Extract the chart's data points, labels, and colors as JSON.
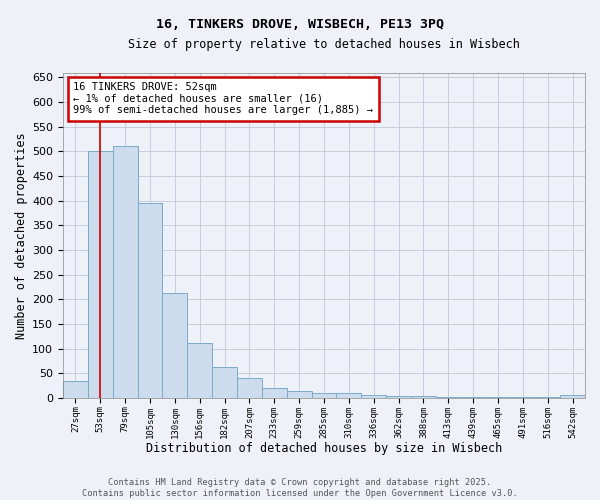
{
  "title_line1": "16, TINKERS DROVE, WISBECH, PE13 3PQ",
  "title_line2": "Size of property relative to detached houses in Wisbech",
  "xlabel": "Distribution of detached houses by size in Wisbech",
  "ylabel": "Number of detached properties",
  "categories": [
    "27sqm",
    "53sqm",
    "79sqm",
    "105sqm",
    "130sqm",
    "156sqm",
    "182sqm",
    "207sqm",
    "233sqm",
    "259sqm",
    "285sqm",
    "310sqm",
    "336sqm",
    "362sqm",
    "388sqm",
    "413sqm",
    "439sqm",
    "465sqm",
    "491sqm",
    "516sqm",
    "542sqm"
  ],
  "values": [
    35,
    500,
    510,
    395,
    213,
    112,
    62,
    40,
    20,
    15,
    10,
    10,
    6,
    4,
    4,
    2,
    1,
    1,
    1,
    1,
    5
  ],
  "bar_color": "#ccdcec",
  "bar_edge_color": "#7aaaca",
  "vline_x_index": 1,
  "vline_color": "#cc0000",
  "annotation_line1": "16 TINKERS DROVE: 52sqm",
  "annotation_line2": "← 1% of detached houses are smaller (16)",
  "annotation_line3": "99% of semi-detached houses are larger (1,885) →",
  "annotation_box_facecolor": "#ffffff",
  "annotation_box_edgecolor": "#cc0000",
  "ylim": [
    0,
    660
  ],
  "yticks": [
    0,
    50,
    100,
    150,
    200,
    250,
    300,
    350,
    400,
    450,
    500,
    550,
    600,
    650
  ],
  "grid_color": "#c0c8d8",
  "footer_line1": "Contains HM Land Registry data © Crown copyright and database right 2025.",
  "footer_line2": "Contains public sector information licensed under the Open Government Licence v3.0.",
  "background_color": "#eef2f8"
}
